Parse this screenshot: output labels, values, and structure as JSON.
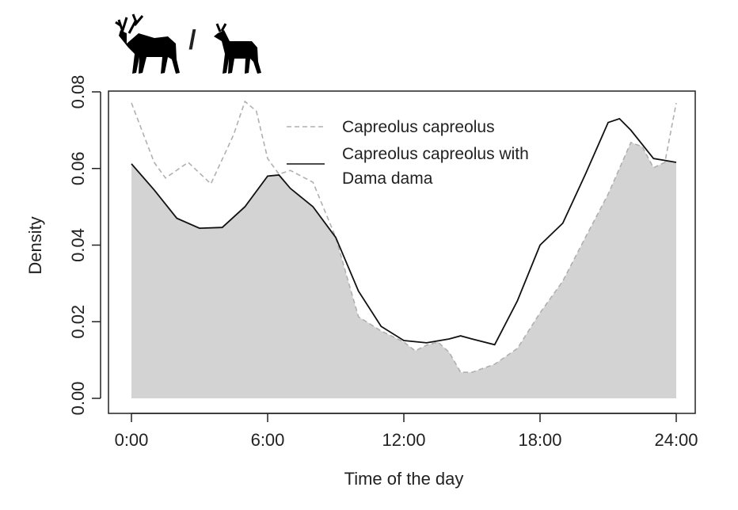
{
  "chart_data": {
    "type": "line",
    "icon_separator": "/",
    "xlabel": "Time of the day",
    "ylabel": "Density",
    "xlim": [
      0,
      24
    ],
    "ylim": [
      0,
      0.08
    ],
    "xticks": [
      {
        "value": 0,
        "label": "0:00"
      },
      {
        "value": 6,
        "label": "6:00"
      },
      {
        "value": 12,
        "label": "12:00"
      },
      {
        "value": 18,
        "label": "18:00"
      },
      {
        "value": 24,
        "label": "24:00"
      }
    ],
    "yticks": [
      {
        "value": 0,
        "label": "0.00"
      },
      0.02,
      0.04,
      0.06,
      0.08
    ],
    "overlap_color": "#d3d3d3",
    "series": [
      {
        "name": "Capreolus capreolus",
        "color": "#b0b0b0",
        "dashed": true,
        "x": [
          0,
          1,
          1.5,
          2.5,
          3.5,
          4.5,
          5,
          5.5,
          6,
          6.5,
          7,
          8,
          9,
          9.5,
          10,
          11,
          12,
          12.5,
          13,
          13.5,
          14,
          14.5,
          15,
          16,
          17,
          18,
          19,
          20,
          21,
          22,
          22.5,
          23,
          23.5,
          24
        ],
        "values": [
          0.0771,
          0.0616,
          0.0575,
          0.0616,
          0.056,
          0.0688,
          0.0775,
          0.075,
          0.0626,
          0.0585,
          0.0595,
          0.0564,
          0.042,
          0.0316,
          0.0213,
          0.0176,
          0.0147,
          0.0124,
          0.0139,
          0.0147,
          0.012,
          0.0068,
          0.0068,
          0.0089,
          0.013,
          0.0223,
          0.0306,
          0.042,
          0.0533,
          0.0668,
          0.0657,
          0.0602,
          0.0616,
          0.0771
        ]
      },
      {
        "name": "Capreolus capreolus with Dama dama",
        "color": "#111111",
        "dashed": false,
        "x": [
          0,
          1,
          2,
          3,
          4,
          5,
          6,
          6.5,
          7,
          8,
          9,
          10,
          11,
          12,
          13,
          14,
          14.5,
          15,
          16,
          17,
          18,
          19,
          20,
          21,
          21.5,
          22,
          23,
          24
        ],
        "values": [
          0.0612,
          0.0544,
          0.047,
          0.0444,
          0.0446,
          0.05,
          0.058,
          0.0583,
          0.0548,
          0.05,
          0.042,
          0.028,
          0.0188,
          0.0151,
          0.0145,
          0.0155,
          0.0163,
          0.0155,
          0.014,
          0.0254,
          0.04,
          0.0457,
          0.0585,
          0.072,
          0.073,
          0.07,
          0.0626,
          0.0616
        ]
      }
    ]
  }
}
